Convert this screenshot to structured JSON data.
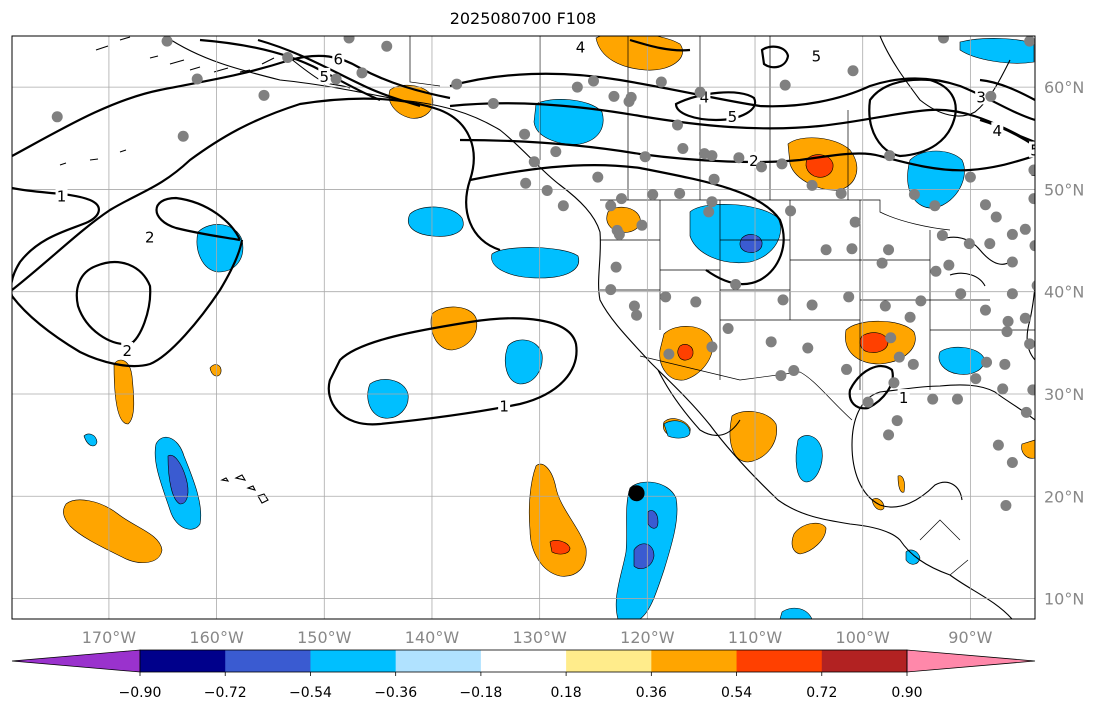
{
  "title": "2025080700 F108",
  "map": {
    "lon_range": [
      -179,
      -84
    ],
    "lat_range": [
      8,
      65
    ],
    "gridlines": true,
    "lon_ticks": [
      {
        "value": -170,
        "label": "170°W"
      },
      {
        "value": -160,
        "label": "160°W"
      },
      {
        "value": -150,
        "label": "150°W"
      },
      {
        "value": -140,
        "label": "140°W"
      },
      {
        "value": -130,
        "label": "130°W"
      },
      {
        "value": -120,
        "label": "120°W"
      },
      {
        "value": -110,
        "label": "110°W"
      },
      {
        "value": -100,
        "label": "100°W"
      },
      {
        "value": -90,
        "label": "90°W"
      }
    ],
    "lat_ticks": [
      {
        "value": 60,
        "label": "60°N"
      },
      {
        "value": 50,
        "label": "50°N"
      },
      {
        "value": 40,
        "label": "40°N"
      },
      {
        "value": 30,
        "label": "30°N"
      },
      {
        "value": 20,
        "label": "20°N"
      },
      {
        "value": 10,
        "label": "10°N"
      }
    ],
    "highlight_point": {
      "lon": -121.0,
      "lat": 20.3
    },
    "contour_labels": [
      {
        "text": "1",
        "lon": -174.4,
        "lat": 49.3
      },
      {
        "text": "2",
        "lon": -166.2,
        "lat": 45.3
      },
      {
        "text": "2",
        "lon": -168.3,
        "lat": 34.2
      },
      {
        "text": "1",
        "lon": -133.3,
        "lat": 28.8
      },
      {
        "text": "6",
        "lon": -148.7,
        "lat": 62.7
      },
      {
        "text": "5",
        "lon": -150.0,
        "lat": 61.0
      },
      {
        "text": "4",
        "lon": -126.2,
        "lat": 63.9
      },
      {
        "text": "5",
        "lon": -112.1,
        "lat": 57.1
      },
      {
        "text": "4",
        "lon": -114.7,
        "lat": 59.0
      },
      {
        "text": "2",
        "lon": -110.1,
        "lat": 52.8
      },
      {
        "text": "3",
        "lon": -89.0,
        "lat": 59.0
      },
      {
        "text": "4",
        "lon": -87.5,
        "lat": 55.7
      },
      {
        "text": "5",
        "lon": -84.0,
        "lat": 53.8
      },
      {
        "text": "3",
        "lon": -84.0,
        "lat": 51.8
      },
      {
        "text": "5",
        "lon": -104.3,
        "lat": 63.0
      },
      {
        "text": "1",
        "lon": -96.2,
        "lat": 29.6
      }
    ],
    "stations": [
      [
        -174.8,
        57.1
      ],
      [
        -164.6,
        64.5
      ],
      [
        -161.8,
        60.8
      ],
      [
        -163.1,
        55.2
      ],
      [
        -155.6,
        59.2
      ],
      [
        -153.4,
        62.9
      ],
      [
        -148.9,
        60.8
      ],
      [
        -146.5,
        61.4
      ],
      [
        -147.7,
        64.8
      ],
      [
        -144.2,
        64.0
      ],
      [
        -134.3,
        58.4
      ],
      [
        -131.4,
        55.4
      ],
      [
        -137.7,
        60.3
      ],
      [
        -125.0,
        60.6
      ],
      [
        -126.5,
        60.0
      ],
      [
        -123.1,
        59.1
      ],
      [
        -121.5,
        59.0
      ],
      [
        -117.2,
        56.3
      ],
      [
        -115.1,
        59.5
      ],
      [
        -107.2,
        60.2
      ],
      [
        -118.7,
        60.5
      ],
      [
        -100.9,
        61.6
      ],
      [
        -92.5,
        64.8
      ],
      [
        -88.1,
        59.1
      ],
      [
        -84.5,
        64.5
      ],
      [
        -84.1,
        51.9
      ],
      [
        -90.0,
        51.2
      ],
      [
        -84.1,
        49.1
      ],
      [
        -97.5,
        53.3
      ],
      [
        -93.3,
        48.4
      ],
      [
        -95.2,
        49.5
      ],
      [
        -104.7,
        50.4
      ],
      [
        -107.5,
        52.5
      ],
      [
        -109.4,
        52.2
      ],
      [
        -111.5,
        53.1
      ],
      [
        -114.0,
        53.3
      ],
      [
        -114.7,
        53.5
      ],
      [
        -113.8,
        51.0
      ],
      [
        -114.0,
        48.8
      ],
      [
        -116.7,
        54.0
      ],
      [
        -120.2,
        53.2
      ],
      [
        -117.0,
        49.6
      ],
      [
        -119.5,
        49.5
      ],
      [
        -122.4,
        49.1
      ],
      [
        -123.4,
        48.4
      ],
      [
        -124.6,
        51.2
      ],
      [
        -130.5,
        52.7
      ],
      [
        -129.3,
        49.9
      ],
      [
        -131.3,
        50.6
      ],
      [
        -127.8,
        48.4
      ],
      [
        -128.5,
        53.7
      ],
      [
        -122.8,
        46.0
      ],
      [
        -120.5,
        46.5
      ],
      [
        -122.6,
        45.6
      ],
      [
        -122.9,
        42.4
      ],
      [
        -118.3,
        39.5
      ],
      [
        -123.4,
        40.2
      ],
      [
        -121.2,
        38.6
      ],
      [
        -121.0,
        37.7
      ],
      [
        -115.5,
        39.0
      ],
      [
        -114.3,
        47.8
      ],
      [
        -106.7,
        47.9
      ],
      [
        -100.7,
        46.8
      ],
      [
        -102.0,
        49.6
      ],
      [
        -103.4,
        44.1
      ],
      [
        -97.6,
        44.1
      ],
      [
        -92.6,
        45.5
      ],
      [
        -97.9,
        38.6
      ],
      [
        -95.6,
        37.5
      ],
      [
        -94.6,
        39.1
      ],
      [
        -93.2,
        42.0
      ],
      [
        -98.2,
        42.8
      ],
      [
        -101.3,
        39.5
      ],
      [
        -107.4,
        39.2
      ],
      [
        -104.7,
        38.7
      ],
      [
        -111.8,
        40.7
      ],
      [
        -112.5,
        36.4
      ],
      [
        -114.0,
        34.6
      ],
      [
        -108.5,
        35.1
      ],
      [
        -106.4,
        32.3
      ],
      [
        -105.1,
        34.5
      ],
      [
        -101.5,
        32.4
      ],
      [
        -97.4,
        35.5
      ],
      [
        -96.6,
        33.6
      ],
      [
        -95.3,
        32.9
      ],
      [
        -97.1,
        31.1
      ],
      [
        -99.5,
        29.2
      ],
      [
        -96.8,
        27.4
      ],
      [
        -97.6,
        26.0
      ],
      [
        -93.5,
        29.5
      ],
      [
        -91.2,
        29.5
      ],
      [
        -89.5,
        31.5
      ],
      [
        -86.8,
        32.9
      ],
      [
        -83.1,
        32.3
      ],
      [
        -84.5,
        34.9
      ],
      [
        -86.6,
        36.1
      ],
      [
        -88.6,
        38.2
      ],
      [
        -90.9,
        39.8
      ],
      [
        -92.0,
        42.6
      ],
      [
        -90.1,
        44.7
      ],
      [
        -88.2,
        44.7
      ],
      [
        -86.1,
        42.9
      ],
      [
        -86.1,
        39.8
      ],
      [
        -83.0,
        40.2
      ],
      [
        -84.9,
        46.1
      ],
      [
        -87.6,
        47.3
      ],
      [
        -88.6,
        48.5
      ],
      [
        -86.1,
        45.6
      ],
      [
        -86.5,
        37.1
      ],
      [
        -84.9,
        37.4
      ],
      [
        -88.5,
        33.1
      ],
      [
        -84.8,
        28.2
      ],
      [
        -84.2,
        30.4
      ],
      [
        -87.0,
        30.5
      ],
      [
        -87.4,
        25.0
      ],
      [
        -83.4,
        27.3
      ],
      [
        -86.1,
        23.3
      ],
      [
        -86.7,
        19.1
      ],
      [
        -83.8,
        40.6
      ],
      [
        -84.0,
        44.5
      ],
      [
        -118.0,
        33.9
      ],
      [
        -107.6,
        31.8
      ],
      [
        -101.0,
        44.2
      ],
      [
        -121.7,
        58.6
      ]
    ]
  },
  "colorbar": {
    "colors": [
      "#9a32cd",
      "#00008b",
      "#3a5bd1",
      "#00bfff",
      "#b0e2ff",
      "#ffffff",
      "#ffec8b",
      "#ffa500",
      "#ff4000",
      "#b22222",
      "#ff88aa"
    ],
    "tick_labels": [
      "−0.90",
      "−0.72",
      "−0.54",
      "−0.36",
      "−0.18",
      "0.18",
      "0.36",
      "0.54",
      "0.72",
      "0.90"
    ]
  }
}
